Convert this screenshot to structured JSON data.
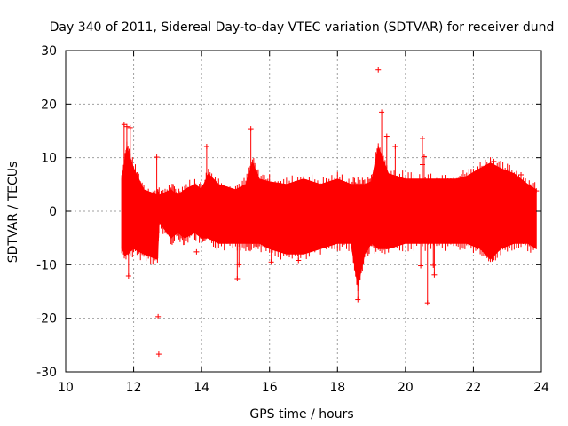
{
  "chart_data": {
    "type": "scatter",
    "title": "Day 340 of 2011, Sidereal Day-to-day VTEC variation (SDTVAR) for receiver dund",
    "xlabel": "GPS time / hours",
    "ylabel": "SDTVAR / TECUs",
    "xlim": [
      10,
      24
    ],
    "ylim": [
      -30,
      30
    ],
    "x_ticks": [
      10,
      12,
      14,
      16,
      18,
      20,
      22,
      24
    ],
    "y_ticks": [
      -30,
      -20,
      -10,
      0,
      10,
      20,
      30
    ],
    "grid": true,
    "series_color": "#ff0000",
    "series": [
      {
        "name": "SDTVAR",
        "band": {
          "x": [
            11.65,
            11.8,
            12.0,
            12.3,
            12.7,
            12.75,
            13.1,
            13.3,
            13.5,
            13.8,
            14.0,
            14.2,
            14.5,
            15.0,
            15.3,
            15.5,
            15.7,
            16.0,
            16.5,
            17.0,
            17.5,
            18.0,
            18.4,
            18.6,
            18.8,
            19.0,
            19.2,
            19.5,
            20.0,
            20.5,
            21.0,
            21.5,
            21.8,
            22.2,
            22.5,
            22.8,
            23.2,
            23.6,
            23.85
          ],
          "upper": [
            6,
            12,
            8,
            4,
            3,
            3,
            4,
            3,
            4,
            5,
            4,
            7,
            5,
            4,
            5,
            9,
            6,
            5.5,
            5,
            6,
            5,
            6,
            5,
            5,
            5,
            5.5,
            12,
            7,
            6,
            6,
            6,
            6,
            6.5,
            8,
            9,
            8,
            7,
            5,
            4
          ],
          "lower": [
            -7,
            -8,
            -7,
            -8,
            -9,
            -2,
            -5,
            -4,
            -5,
            -4,
            -5,
            -5,
            -6,
            -6,
            -6,
            -6,
            -6,
            -7,
            -8,
            -8,
            -7,
            -6,
            -6,
            -14,
            -8,
            -6,
            -7,
            -7,
            -6,
            -6,
            -6,
            -6,
            -6,
            -7,
            -9,
            -7,
            -6,
            -6,
            -7
          ]
        },
        "points": [
          [
            11.72,
            16.2
          ],
          [
            11.8,
            15.8
          ],
          [
            11.9,
            15.6
          ],
          [
            11.85,
            -12.1
          ],
          [
            12.68,
            10.1
          ],
          [
            12.72,
            -19.7
          ],
          [
            12.74,
            -26.7
          ],
          [
            13.0,
            -2.0
          ],
          [
            13.85,
            -7.6
          ],
          [
            14.15,
            12.1
          ],
          [
            15.05,
            -12.6
          ],
          [
            15.1,
            -10.0
          ],
          [
            15.45,
            15.4
          ],
          [
            16.05,
            -9.5
          ],
          [
            16.85,
            -9.2
          ],
          [
            18.6,
            -16.5
          ],
          [
            19.2,
            26.4
          ],
          [
            19.3,
            18.5
          ],
          [
            19.45,
            14.0
          ],
          [
            19.7,
            12.1
          ],
          [
            20.5,
            13.6
          ],
          [
            20.55,
            10.2
          ],
          [
            20.5,
            8.7
          ],
          [
            20.45,
            -10.2
          ],
          [
            20.65,
            -17.1
          ],
          [
            20.85,
            -11.9
          ],
          [
            20.82,
            -10.1
          ],
          [
            22.6,
            9.3
          ],
          [
            23.0,
            7.4
          ],
          [
            23.4,
            6.8
          ],
          [
            23.85,
            3.8
          ]
        ]
      }
    ]
  }
}
